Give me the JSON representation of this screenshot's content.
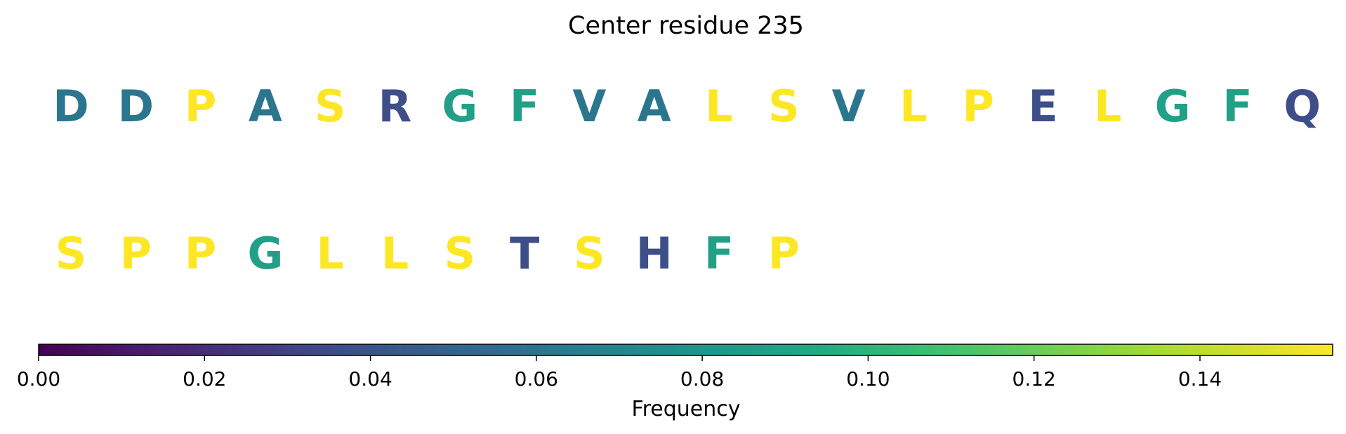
{
  "chart_data": {
    "type": "heatmap",
    "title": "Center residue 235",
    "rows": [
      {
        "residues": [
          "D",
          "D",
          "P",
          "A",
          "S",
          "R",
          "G",
          "F",
          "V",
          "A",
          "L",
          "S",
          "V",
          "L",
          "P",
          "E",
          "L",
          "G",
          "F",
          "Q"
        ],
        "frequencies": [
          0.061,
          0.061,
          0.156,
          0.061,
          0.156,
          0.037,
          0.088,
          0.088,
          0.061,
          0.061,
          0.156,
          0.156,
          0.061,
          0.156,
          0.156,
          0.037,
          0.156,
          0.088,
          0.088,
          0.037
        ]
      },
      {
        "residues": [
          "S",
          "P",
          "P",
          "G",
          "L",
          "L",
          "S",
          "T",
          "S",
          "H",
          "F",
          "P"
        ],
        "frequencies": [
          0.156,
          0.156,
          0.156,
          0.088,
          0.156,
          0.156,
          0.156,
          0.037,
          0.156,
          0.037,
          0.088,
          0.156
        ]
      }
    ],
    "colorbar": {
      "label": "Frequency",
      "colormap": "viridis",
      "range": [
        0,
        0.156
      ],
      "ticks": [
        0.0,
        0.02,
        0.04,
        0.06,
        0.08,
        0.1,
        0.12,
        0.14
      ],
      "tick_labels": [
        "0.00",
        "0.02",
        "0.04",
        "0.06",
        "0.08",
        "0.10",
        "0.12",
        "0.14"
      ]
    }
  }
}
